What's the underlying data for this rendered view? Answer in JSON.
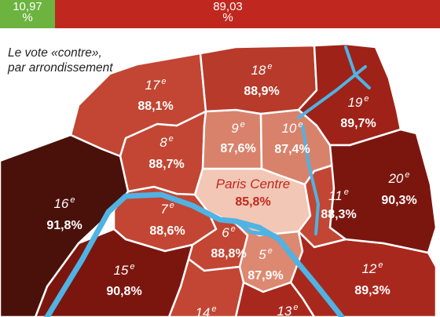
{
  "bar": {
    "left": {
      "value": "10,97",
      "unit": "%",
      "color": "#6cb33f"
    },
    "right": {
      "value": "89,03",
      "unit": "%",
      "color": "#c0281f"
    }
  },
  "caption": {
    "line1": "Le vote «contre»,",
    "line2": "par arrondissement"
  },
  "colors": {
    "river": "#4fb3e3",
    "border": "#ffffff",
    "scale": [
      "#f2c7b5",
      "#d9826b",
      "#c44a35",
      "#a9281d",
      "#7b160f",
      "#4a110a"
    ]
  },
  "districts": [
    {
      "id": "paris-centre",
      "label": "Paris Centre",
      "sup": "",
      "value": "85,8%",
      "color": "#f2c7b5",
      "text_color": "#c0281f"
    },
    {
      "id": "5",
      "label": "5",
      "sup": "e",
      "value": "87,9%",
      "color": "#dd8870",
      "text_color": "#ffffff"
    },
    {
      "id": "6",
      "label": "6",
      "sup": "e",
      "value": "88,8%",
      "color": "#c24633",
      "text_color": "#ffffff"
    },
    {
      "id": "7",
      "label": "7",
      "sup": "e",
      "value": "88,6%",
      "color": "#c24633",
      "text_color": "#ffffff"
    },
    {
      "id": "8",
      "label": "8",
      "sup": "e",
      "value": "88,7%",
      "color": "#c24633",
      "text_color": "#ffffff"
    },
    {
      "id": "9",
      "label": "9",
      "sup": "e",
      "value": "87,6%",
      "color": "#d9826b",
      "text_color": "#ffffff"
    },
    {
      "id": "10",
      "label": "10",
      "sup": "e",
      "value": "87,4%",
      "color": "#d9826b",
      "text_color": "#ffffff"
    },
    {
      "id": "11",
      "label": "11",
      "sup": "e",
      "value": "88,3%",
      "color": "#c24633",
      "text_color": "#ffffff"
    },
    {
      "id": "12",
      "label": "12",
      "sup": "e",
      "value": "89,3%",
      "color": "#a9281d",
      "text_color": "#ffffff"
    },
    {
      "id": "13",
      "label": "13",
      "sup": "e",
      "value": "",
      "color": "#a9281d",
      "text_color": "#ffffff"
    },
    {
      "id": "14",
      "label": "14",
      "sup": "e",
      "value": "",
      "color": "#c24633",
      "text_color": "#ffffff"
    },
    {
      "id": "15",
      "label": "15",
      "sup": "e",
      "value": "90,8%",
      "color": "#7b160f",
      "text_color": "#ffffff"
    },
    {
      "id": "16",
      "label": "16",
      "sup": "e",
      "value": "91,8%",
      "color": "#4a110a",
      "text_color": "#ffffff"
    },
    {
      "id": "17",
      "label": "17",
      "sup": "e",
      "value": "88,1%",
      "color": "#c24633",
      "text_color": "#ffffff"
    },
    {
      "id": "18",
      "label": "18",
      "sup": "e",
      "value": "88,9%",
      "color": "#b83a2a",
      "text_color": "#ffffff"
    },
    {
      "id": "19",
      "label": "19",
      "sup": "e",
      "value": "89,7%",
      "color": "#9e2218",
      "text_color": "#ffffff"
    },
    {
      "id": "20",
      "label": "20",
      "sup": "e",
      "value": "90,3%",
      "color": "#7b160f",
      "text_color": "#ffffff"
    }
  ]
}
